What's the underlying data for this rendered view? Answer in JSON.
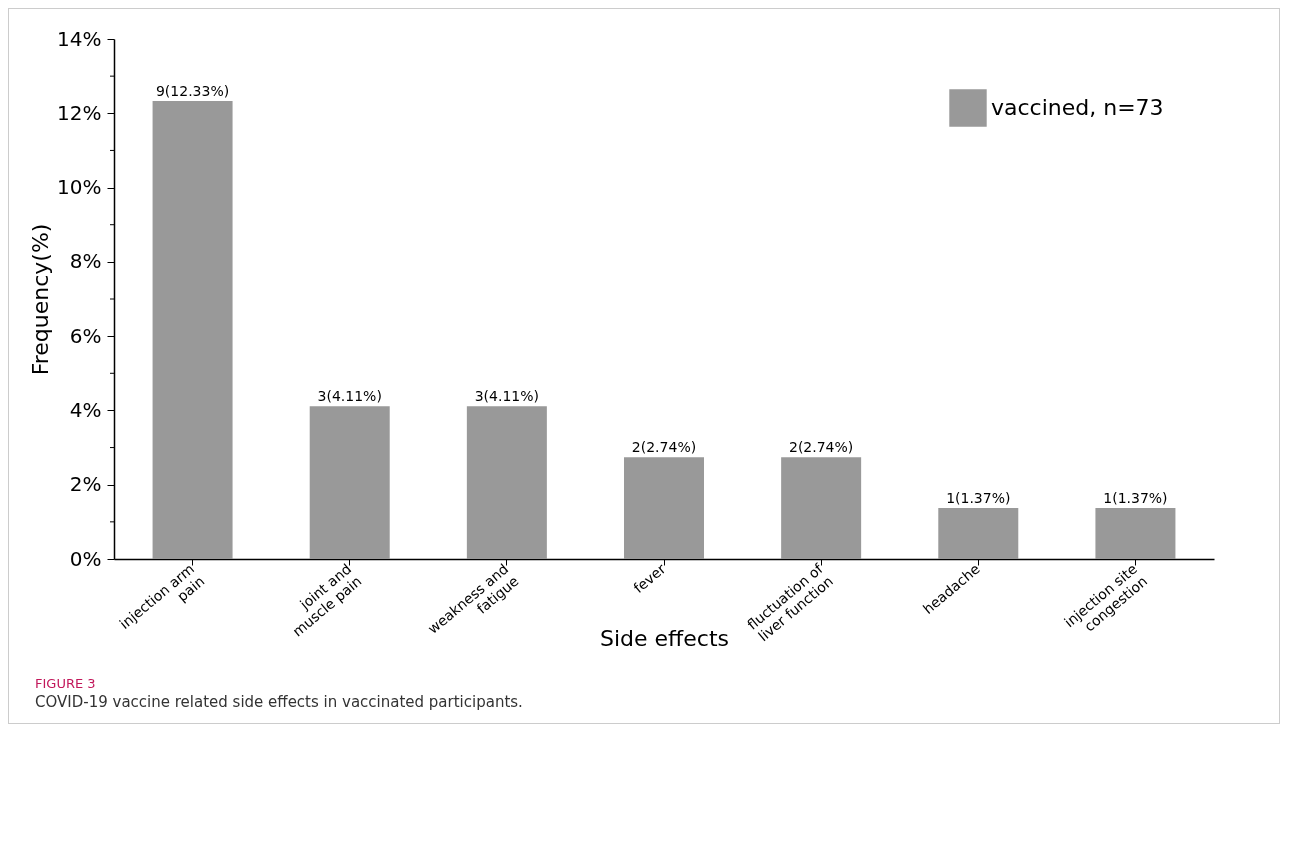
{
  "chart_data": {
    "type": "bar",
    "xlabel": "Side effects",
    "ylabel": "Frequency(%)",
    "categories": [
      "injection arm\npain",
      "joint and\nmuscle pain",
      "weakness and\nfatigue",
      "fever",
      "fluctuation of\nliver function",
      "headache",
      "injection site\ncongestion"
    ],
    "series": [
      {
        "name": "vaccined, n=73",
        "color": "#999999",
        "values": [
          12.33,
          4.11,
          4.11,
          2.74,
          2.74,
          1.37,
          1.37
        ],
        "value_labels": [
          "9(12.33%)",
          "3(4.11%)",
          "3(4.11%)",
          "2(2.74%)",
          "2(2.74%)",
          "1(1.37%)",
          "1(1.37%)"
        ]
      }
    ],
    "ylim": [
      0,
      14
    ],
    "yticks": [
      {
        "value": 0,
        "label": "0%"
      },
      {
        "value": 1,
        "label": null
      },
      {
        "value": 2,
        "label": "2%"
      },
      {
        "value": 3,
        "label": null
      },
      {
        "value": 4,
        "label": "4%"
      },
      {
        "value": 5,
        "label": null
      },
      {
        "value": 6,
        "label": "6%"
      },
      {
        "value": 7,
        "label": null
      },
      {
        "value": 8,
        "label": "8%"
      },
      {
        "value": 9,
        "label": null
      },
      {
        "value": 10,
        "label": "10%"
      },
      {
        "value": 11,
        "label": null
      },
      {
        "value": 12,
        "label": "12%"
      },
      {
        "value": 13,
        "label": null
      },
      {
        "value": 14,
        "label": "14%"
      }
    ],
    "grid": false,
    "legend": "top right",
    "annotations": [
      "FIGURE 3",
      "COVID-19 vaccine related side effects in vaccinated participants."
    ]
  }
}
